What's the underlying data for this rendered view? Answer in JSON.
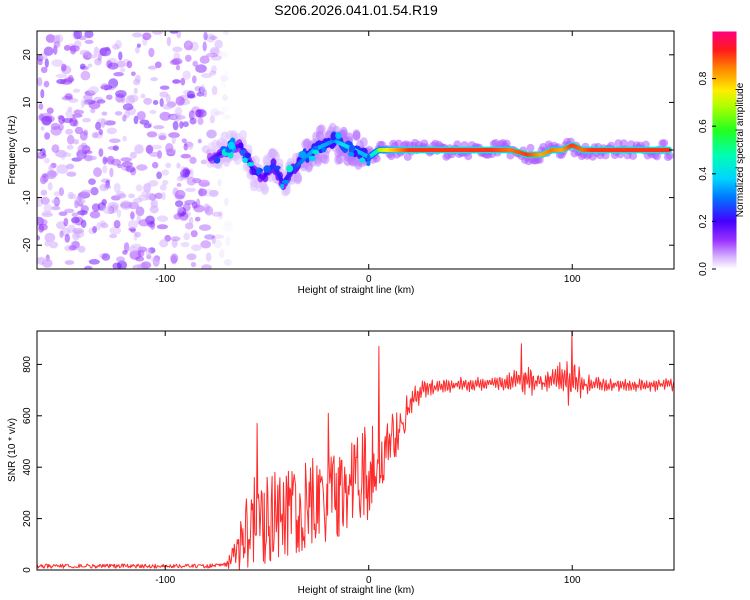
{
  "chart_data": [
    {
      "type": "heatmap",
      "title": "S206.2026.041.01.54.R19",
      "xlabel": "Height of straight line (km)",
      "ylabel": "Frequency (Hz)",
      "xlim": [
        -163,
        150
      ],
      "ylim": [
        -25,
        25
      ],
      "x_ticks": [
        -100,
        0,
        100
      ],
      "x_ticklabels": [
        "-100",
        "0",
        "100"
      ],
      "y_ticks": [
        -20,
        -10,
        0,
        10,
        20
      ],
      "y_ticklabels": [
        "-20",
        "-10",
        "0",
        "10",
        "20"
      ],
      "noise_region_x": [
        -163,
        -75
      ],
      "ridge": {
        "x": [
          -78,
          -70,
          -63,
          -57,
          -52,
          -47,
          -42,
          -37,
          -32,
          -27,
          -22,
          -17,
          -12,
          -7,
          -2,
          0,
          5,
          10,
          20,
          40,
          60,
          70,
          78,
          85,
          90,
          95,
          100,
          105,
          110,
          125,
          140,
          148
        ],
        "freq": [
          -2,
          0,
          1,
          -4,
          -6,
          -3,
          -7,
          -4,
          -2,
          0,
          1,
          2,
          1,
          0,
          -1,
          -1.5,
          0,
          0,
          0,
          0,
          0,
          0,
          -1,
          -1,
          0,
          0,
          1,
          0,
          0,
          0,
          0,
          0
        ],
        "amplitude": [
          0.2,
          0.3,
          0.25,
          0.3,
          0.25,
          0.35,
          0.3,
          0.35,
          0.45,
          0.5,
          0.5,
          0.45,
          0.6,
          0.55,
          0.5,
          0.55,
          0.7,
          0.8,
          0.95,
          0.95,
          0.95,
          0.9,
          0.95,
          0.85,
          0.9,
          0.85,
          0.95,
          0.9,
          0.95,
          0.95,
          0.95,
          0.95
        ]
      },
      "colorbar": {
        "label": "Normalized spectral amplitude",
        "range": [
          0,
          1
        ],
        "ticks": [
          0,
          0.2,
          0.4,
          0.6,
          0.8
        ],
        "ticklabels": [
          "0.0",
          "0.2",
          "0.4",
          "0.6",
          "0.8"
        ]
      }
    },
    {
      "type": "line",
      "xlabel": "Height of straight line (km)",
      "ylabel": "SNR (10 * v/v)",
      "xlim": [
        -163,
        150
      ],
      "ylim": [
        0,
        930
      ],
      "x_ticks": [
        -100,
        0,
        100
      ],
      "x_ticklabels": [
        "-100",
        "0",
        "100"
      ],
      "y_ticks": [
        0,
        200,
        400,
        600,
        800
      ],
      "y_ticklabels": [
        "0",
        "200",
        "400",
        "600",
        "800"
      ],
      "series": [
        {
          "name": "SNR",
          "color": "#ff2a2a",
          "x": [
            -163,
            -140,
            -120,
            -100,
            -80,
            -70,
            -65,
            -60,
            -55,
            -50,
            -45,
            -40,
            -35,
            -30,
            -25,
            -20,
            -15,
            -10,
            -5,
            0,
            5,
            10,
            15,
            20,
            25,
            30,
            40,
            50,
            60,
            70,
            75,
            80,
            85,
            90,
            95,
            100,
            105,
            110,
            120,
            130,
            140,
            150
          ],
          "mean": [
            15,
            15,
            15,
            15,
            15,
            18,
            60,
            160,
            200,
            210,
            210,
            220,
            230,
            250,
            270,
            290,
            300,
            320,
            360,
            380,
            420,
            480,
            560,
            640,
            690,
            710,
            720,
            725,
            730,
            730,
            740,
            735,
            730,
            735,
            740,
            730,
            725,
            720,
            720,
            720,
            720,
            720
          ],
          "spread": [
            8,
            8,
            8,
            8,
            8,
            10,
            80,
            160,
            180,
            190,
            170,
            170,
            170,
            170,
            180,
            180,
            170,
            180,
            160,
            200,
            140,
            120,
            100,
            70,
            50,
            40,
            35,
            35,
            35,
            50,
            60,
            70,
            60,
            70,
            80,
            120,
            60,
            40,
            30,
            30,
            30,
            30
          ]
        }
      ],
      "peaks": [
        [
          -55,
          570
        ],
        [
          -20,
          610
        ],
        [
          5,
          870
        ],
        [
          75,
          880
        ],
        [
          100,
          930
        ]
      ]
    }
  ]
}
